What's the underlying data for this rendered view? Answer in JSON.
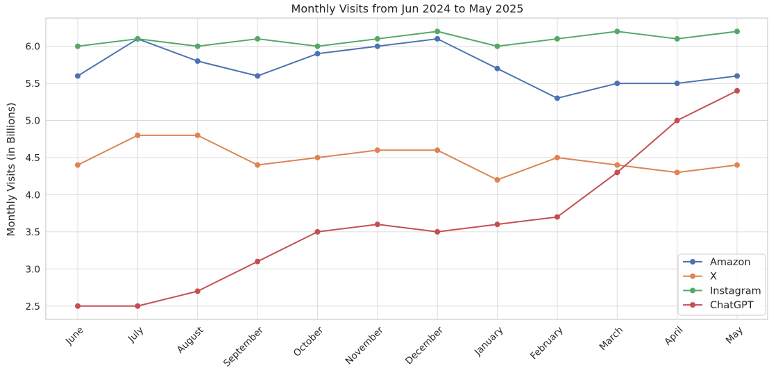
{
  "chart_data": {
    "type": "line",
    "title": "Monthly Visits from Jun 2024 to May 2025",
    "xlabel": "",
    "ylabel": "Monthly Visits (in Billions)",
    "categories": [
      "June",
      "July",
      "August",
      "September",
      "October",
      "November",
      "December",
      "January",
      "February",
      "March",
      "April",
      "May"
    ],
    "ylim": [
      2.32,
      6.38
    ],
    "yticks": [
      2.5,
      3.0,
      3.5,
      4.0,
      4.5,
      5.0,
      5.5,
      6.0
    ],
    "ytick_labels": [
      "2.5",
      "3.0",
      "3.5",
      "4.0",
      "4.5",
      "5.0",
      "5.5",
      "6.0"
    ],
    "grid": true,
    "legend_position": "bottom-right",
    "series": [
      {
        "name": "Amazon",
        "color": "#4c72b0",
        "values": [
          5.6,
          6.1,
          5.8,
          5.6,
          5.9,
          6.0,
          6.1,
          5.7,
          5.3,
          5.5,
          5.5,
          5.6
        ]
      },
      {
        "name": "X",
        "color": "#dd8452",
        "values": [
          4.4,
          4.8,
          4.8,
          4.4,
          4.5,
          4.6,
          4.6,
          4.2,
          4.5,
          4.4,
          4.3,
          4.4
        ]
      },
      {
        "name": "Instagram",
        "color": "#55a868",
        "values": [
          6.0,
          6.1,
          6.0,
          6.1,
          6.0,
          6.1,
          6.2,
          6.0,
          6.1,
          6.2,
          6.1,
          6.2
        ]
      },
      {
        "name": "ChatGPT",
        "color": "#c44e52",
        "values": [
          2.5,
          2.5,
          2.7,
          3.1,
          3.5,
          3.6,
          3.5,
          3.6,
          3.7,
          4.3,
          5.0,
          5.4
        ]
      }
    ]
  }
}
